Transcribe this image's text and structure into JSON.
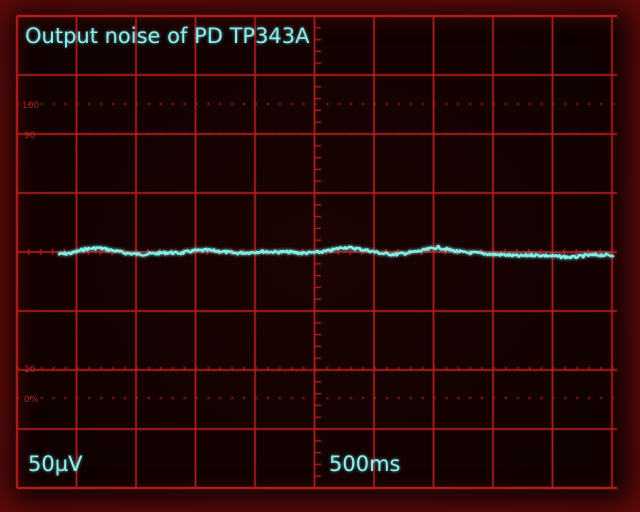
{
  "overlay": {
    "title": "Output noise of PD TP343A",
    "volts_per_div": "50µV",
    "time_per_div": "500ms"
  },
  "graticule": {
    "markings": [
      "100",
      "90",
      "10",
      "0%"
    ]
  },
  "colors": {
    "trace": "#7ff4ec",
    "grid": "#b0201c",
    "text": "#8ff0f0"
  },
  "chart_data": {
    "type": "line",
    "x": [
      0,
      0.25,
      0.5,
      0.75,
      1.0,
      1.25,
      1.5,
      1.75,
      2.0,
      2.25,
      2.5,
      2.75,
      3.0,
      3.25,
      3.5,
      3.75,
      4.0,
      4.25,
      4.5,
      4.75,
      5.0,
      5.25,
      5.5,
      5.75,
      6.0,
      6.25,
      6.5,
      6.75,
      7.0,
      7.25,
      7.5,
      7.75,
      8.0,
      8.25,
      8.5,
      8.75,
      9.0,
      9.25,
      9.5,
      9.75,
      10.0,
      10.25
    ],
    "y": [
      -0.04,
      -0.02,
      0.05,
      0.07,
      0.03,
      -0.02,
      -0.04,
      -0.03,
      -0.01,
      -0.02,
      0.02,
      0.03,
      0.01,
      -0.02,
      -0.01,
      0.01,
      0.0,
      0.0,
      -0.02,
      -0.01,
      0.02,
      0.08,
      0.06,
      0.02,
      -0.03,
      -0.04,
      -0.01,
      0.03,
      0.08,
      0.03,
      -0.01,
      -0.02,
      -0.04,
      -0.05,
      -0.07,
      -0.05,
      -0.06,
      -0.08,
      -0.09,
      -0.06,
      -0.05,
      -0.06
    ],
    "xlim": [
      0,
      10.4
    ],
    "ylim": [
      -4,
      4
    ],
    "grid": true
  }
}
